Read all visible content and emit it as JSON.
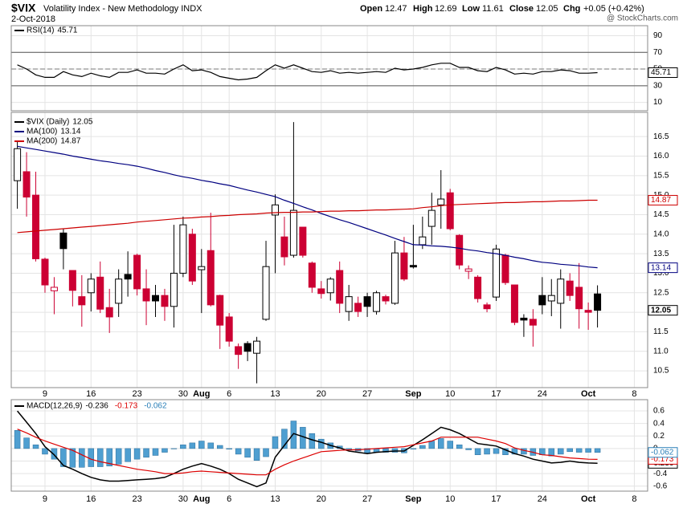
{
  "header": {
    "symbol": "$VIX",
    "name": "Volatility Index - New Methodology INDX",
    "date": "2-Oct-2018",
    "open_label": "Open",
    "high_label": "High",
    "low_label": "Low",
    "close_label": "Close",
    "chg_label": "Chg",
    "change": "+0.05 (+0.42%)",
    "credit": "@ StockCharts.com"
  },
  "chart_data": [
    {
      "type": "line",
      "ylim": [
        0,
        102
      ],
      "yticks": [
        90,
        70,
        50,
        30,
        10
      ],
      "hlines": [
        70,
        30
      ],
      "midline": 50,
      "series": [
        {
          "name": "RSI(14)",
          "color": "#000000",
          "values": [
            55,
            50,
            43,
            40,
            40,
            47,
            43,
            41,
            45,
            42,
            40,
            46,
            46,
            49,
            45,
            45,
            44,
            50,
            55,
            48,
            49,
            46,
            41,
            39,
            37,
            38,
            40,
            48,
            55,
            51,
            55,
            51,
            47,
            46,
            48,
            45,
            46,
            45,
            46,
            47,
            46,
            51,
            49,
            50,
            52,
            55,
            57,
            57,
            52,
            52,
            48,
            47,
            52,
            49,
            44,
            45,
            44,
            47,
            47,
            49,
            48,
            45,
            45,
            45.71,
            null,
            null,
            null,
            null
          ]
        }
      ]
    },
    {
      "type": "candlestick",
      "ylim": [
        10.07,
        17.12
      ],
      "yticks": [
        10.5,
        {
          "value": 11,
          "label": "11.0"
        },
        11.5,
        {
          "value": 12,
          "label": "12.0"
        },
        12.5,
        {
          "value": 13,
          "label": "13.0"
        },
        13.5,
        {
          "value": 14,
          "label": "14.0"
        },
        14.5,
        {
          "value": 15,
          "label": "15.0"
        },
        15.5,
        {
          "value": 16,
          "label": "16.0"
        },
        16.5
      ],
      "categories": [
        null,
        null,
        null,
        "9",
        null,
        null,
        null,
        null,
        "16",
        null,
        null,
        null,
        null,
        "23",
        null,
        null,
        null,
        null,
        "30",
        null,
        "Aug",
        null,
        null,
        "6",
        null,
        null,
        null,
        null,
        "13",
        null,
        null,
        null,
        null,
        "20",
        null,
        null,
        null,
        null,
        "27",
        null,
        null,
        null,
        null,
        "Sep",
        null,
        null,
        null,
        "10",
        null,
        null,
        null,
        null,
        "17",
        null,
        null,
        null,
        null,
        "24",
        null,
        null,
        null,
        null,
        "Oct",
        null,
        null,
        null,
        null,
        "8"
      ],
      "up_color": "#000000",
      "down_color": "#cc0033",
      "series": [
        {
          "name": "$VIX (Daily)",
          "open": [
            15.37,
            15.6,
            15.0,
            13.36,
            12.55,
            14.03,
            13.07,
            12.4,
            12.5,
            12.9,
            12.12,
            12.23,
            12.97,
            13.46,
            12.6,
            12.43,
            12.43,
            12.15,
            13.0,
            14.0,
            13.09,
            13.58,
            12.43,
            11.88,
            11.12,
            11.2,
            10.95,
            11.82,
            14.49,
            13.93,
            13.46,
            14.18,
            13.26,
            12.6,
            12.5,
            13.07,
            12.02,
            12.23,
            12.4,
            12.02,
            12.4,
            12.23,
            13.52,
            13.2,
            13.73,
            14.2,
            14.75,
            15.06,
            13.97,
            13.05,
            12.9,
            12.19,
            12.39,
            13.46,
            12.7,
            11.85,
            11.82,
            12.43,
            12.29,
            12.23,
            12.8,
            12.64,
            12.05,
            12.47,
            null,
            null,
            null,
            null
          ],
          "high": [
            16.4,
            16.1,
            15.6,
            13.4,
            12.9,
            14.14,
            13.07,
            12.95,
            13.0,
            13.3,
            12.6,
            13.1,
            13.56,
            13.5,
            13.1,
            12.7,
            12.6,
            14.24,
            14.45,
            14.14,
            13.62,
            14.55,
            12.45,
            11.98,
            11.2,
            11.26,
            11.37,
            13.83,
            15.02,
            14.45,
            16.87,
            14.18,
            13.3,
            12.8,
            12.9,
            13.3,
            12.7,
            12.4,
            12.5,
            12.55,
            12.45,
            13.83,
            13.93,
            14.24,
            14.45,
            15.06,
            15.64,
            15.16,
            14.0,
            13.2,
            12.95,
            12.25,
            13.73,
            13.5,
            12.7,
            11.95,
            12.08,
            12.9,
            12.85,
            13.1,
            13.0,
            13.26,
            12.25,
            12.69,
            null,
            null,
            null,
            null
          ],
          "low": [
            14.65,
            14.45,
            13.3,
            12.5,
            11.95,
            13.1,
            12.15,
            11.63,
            12.02,
            11.98,
            11.47,
            11.88,
            12.4,
            12.43,
            11.67,
            11.88,
            11.78,
            11.61,
            12.9,
            12.7,
            11.98,
            12.15,
            11.06,
            11.12,
            10.55,
            10.75,
            10.18,
            11.78,
            13.0,
            13.2,
            13.4,
            13.4,
            12.5,
            12.35,
            12.3,
            11.98,
            11.78,
            11.88,
            11.88,
            11.94,
            12.2,
            12.19,
            12.8,
            13.12,
            13.62,
            13.73,
            14.14,
            14.1,
            13.1,
            12.85,
            12.25,
            12.0,
            12.29,
            12.7,
            11.67,
            11.37,
            11.12,
            11.95,
            11.9,
            11.58,
            12.29,
            11.58,
            11.55,
            11.61,
            null,
            null,
            null,
            null
          ],
          "close": [
            16.19,
            14.95,
            13.37,
            12.7,
            12.64,
            13.63,
            12.56,
            12.19,
            12.85,
            12.08,
            11.88,
            12.85,
            12.85,
            12.6,
            12.29,
            12.29,
            12.15,
            13.0,
            14.24,
            12.8,
            13.17,
            12.19,
            11.67,
            11.26,
            10.92,
            11.0,
            11.26,
            13.17,
            14.75,
            13.42,
            14.61,
            13.46,
            12.64,
            12.48,
            12.85,
            12.23,
            12.4,
            12.02,
            12.15,
            12.5,
            12.29,
            13.52,
            12.85,
            13.16,
            13.93,
            14.61,
            14.9,
            14.14,
            13.21,
            13.11,
            12.35,
            12.09,
            13.62,
            12.76,
            11.74,
            11.8,
            11.67,
            12.19,
            12.43,
            12.85,
            12.43,
            12.09,
            12.0,
            12.05,
            null,
            null,
            null,
            null
          ]
        },
        {
          "name": "MA(100)",
          "color": "#000080",
          "values": [
            16.25,
            16.21,
            16.17,
            16.13,
            16.09,
            16.05,
            16.0,
            15.96,
            15.92,
            15.88,
            15.85,
            15.81,
            15.78,
            15.74,
            15.69,
            15.63,
            15.58,
            15.52,
            15.47,
            15.43,
            15.38,
            15.34,
            15.29,
            15.25,
            15.19,
            15.13,
            15.08,
            15.02,
            14.96,
            14.87,
            14.79,
            14.7,
            14.62,
            14.53,
            14.45,
            14.37,
            14.3,
            14.22,
            14.14,
            14.06,
            13.98,
            13.89,
            13.81,
            13.73,
            13.72,
            13.7,
            13.69,
            13.67,
            13.64,
            13.6,
            13.57,
            13.53,
            13.5,
            13.46,
            13.41,
            13.37,
            13.32,
            13.28,
            13.26,
            13.23,
            13.21,
            13.19,
            13.16,
            13.14,
            null,
            null,
            null,
            null
          ]
        },
        {
          "name": "MA(200)",
          "color": "#cc0000",
          "values": [
            14.04,
            14.06,
            14.08,
            14.1,
            14.12,
            14.14,
            14.16,
            14.18,
            14.2,
            14.22,
            14.24,
            14.26,
            14.28,
            14.31,
            14.33,
            14.35,
            14.37,
            14.39,
            14.41,
            14.42,
            14.44,
            14.45,
            14.47,
            14.48,
            14.5,
            14.51,
            14.52,
            14.54,
            14.55,
            14.56,
            14.56,
            14.57,
            14.57,
            14.58,
            14.59,
            14.59,
            14.6,
            14.6,
            14.61,
            14.62,
            14.62,
            14.63,
            14.64,
            14.65,
            14.68,
            14.7,
            14.73,
            14.75,
            14.76,
            14.77,
            14.78,
            14.79,
            14.8,
            14.81,
            14.81,
            14.82,
            14.83,
            14.83,
            14.84,
            14.85,
            14.85,
            14.86,
            14.87,
            14.87,
            null,
            null,
            null,
            null
          ]
        }
      ]
    },
    {
      "type": "macd",
      "ylim": [
        -0.68,
        0.78
      ],
      "yticks": [
        0.6,
        0.4,
        0.2,
        0,
        -0.2,
        -0.4,
        -0.6
      ],
      "categories": [
        null,
        null,
        null,
        "9",
        null,
        null,
        null,
        null,
        "16",
        null,
        null,
        null,
        null,
        "23",
        null,
        null,
        null,
        null,
        "30",
        null,
        "Aug",
        null,
        null,
        "6",
        null,
        null,
        null,
        null,
        "13",
        null,
        null,
        null,
        null,
        "20",
        null,
        null,
        null,
        null,
        "27",
        null,
        null,
        null,
        null,
        "Sep",
        null,
        null,
        null,
        "10",
        null,
        null,
        null,
        null,
        "17",
        null,
        null,
        null,
        null,
        "24",
        null,
        null,
        null,
        null,
        "Oct",
        null,
        null,
        null,
        null,
        "8"
      ],
      "series": [
        {
          "name": "MACD(12,26,9)",
          "color": "#000000",
          "values": [
            0.6,
            0.42,
            0.24,
            0.03,
            -0.1,
            -0.27,
            -0.33,
            -0.4,
            -0.46,
            -0.5,
            -0.52,
            -0.52,
            -0.51,
            -0.5,
            -0.49,
            -0.48,
            -0.46,
            -0.4,
            -0.33,
            -0.28,
            -0.24,
            -0.28,
            -0.33,
            -0.4,
            -0.49,
            -0.55,
            -0.61,
            -0.55,
            -0.14,
            0.05,
            0.24,
            0.19,
            0.14,
            0.1,
            0.05,
            0.01,
            -0.04,
            -0.06,
            -0.08,
            -0.06,
            -0.05,
            -0.04,
            -0.04,
            0.05,
            0.14,
            0.24,
            0.34,
            0.3,
            0.24,
            0.16,
            0.08,
            0.06,
            0.04,
            -0.02,
            -0.08,
            -0.12,
            -0.17,
            -0.2,
            -0.23,
            -0.22,
            -0.2,
            -0.22,
            -0.23,
            -0.236,
            null,
            null,
            null,
            null
          ]
        },
        {
          "color": "#dd0000",
          "values": [
            0.31,
            0.25,
            0.18,
            0.12,
            0.07,
            0.02,
            -0.03,
            -0.1,
            -0.17,
            -0.21,
            -0.24,
            -0.27,
            -0.3,
            -0.33,
            -0.35,
            -0.37,
            -0.4,
            -0.4,
            -0.39,
            -0.37,
            -0.36,
            -0.37,
            -0.38,
            -0.39,
            -0.4,
            -0.41,
            -0.42,
            -0.42,
            -0.33,
            -0.26,
            -0.2,
            -0.15,
            -0.1,
            -0.05,
            -0.04,
            -0.03,
            -0.02,
            -0.02,
            -0.01,
            0,
            0.01,
            0.02,
            0.03,
            0.06,
            0.09,
            0.12,
            0.18,
            0.18,
            0.18,
            0.18,
            0.18,
            0.15,
            0.12,
            0.08,
            0.01,
            -0.03,
            -0.06,
            -0.1,
            -0.11,
            -0.13,
            -0.15,
            -0.16,
            -0.17,
            -0.173,
            null,
            null,
            null,
            null
          ]
        },
        {
          "type": "histogram",
          "color": "#4f9fd1",
          "values": [
            0.29,
            0.17,
            0.06,
            -0.09,
            -0.17,
            -0.29,
            -0.3,
            -0.3,
            -0.29,
            -0.29,
            -0.28,
            -0.25,
            -0.21,
            -0.17,
            -0.14,
            -0.11,
            -0.06,
            0,
            0.06,
            0.09,
            0.12,
            0.09,
            0.05,
            -0.01,
            -0.09,
            -0.14,
            -0.19,
            -0.13,
            0.19,
            0.31,
            0.44,
            0.34,
            0.24,
            0.15,
            0.09,
            0.04,
            -0.02,
            -0.04,
            -0.07,
            -0.06,
            -0.06,
            -0.06,
            -0.07,
            -0.01,
            0.05,
            0.12,
            0.16,
            0.12,
            0.06,
            -0.02,
            -0.1,
            -0.09,
            -0.08,
            -0.1,
            -0.09,
            -0.09,
            -0.11,
            -0.1,
            -0.12,
            -0.09,
            -0.05,
            -0.06,
            -0.06,
            -0.062,
            null,
            null,
            null,
            null
          ]
        }
      ]
    }
  ]
}
